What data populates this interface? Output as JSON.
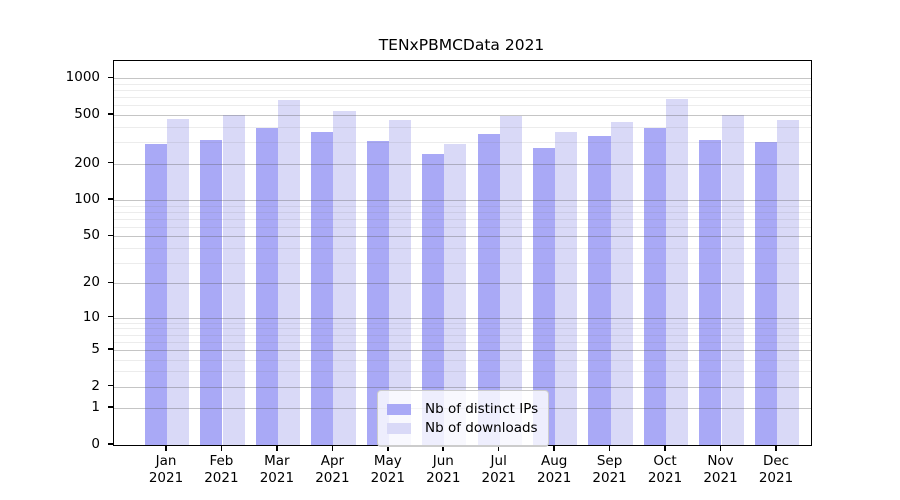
{
  "chart_data": {
    "type": "bar",
    "title": "TENxPBMCData 2021",
    "xlabel": "",
    "ylabel": "",
    "yscale": "log1p",
    "ylim": [
      0,
      1385
    ],
    "yticks": [
      0,
      1,
      2,
      5,
      10,
      20,
      50,
      100,
      200,
      500,
      1000
    ],
    "yticks_minor": [
      3,
      4,
      6,
      7,
      8,
      9,
      30,
      40,
      60,
      70,
      80,
      90,
      300,
      400,
      600,
      700,
      800,
      900
    ],
    "grid": "horizontal",
    "legend_position": "lower-center",
    "categories": [
      {
        "month": "Jan",
        "year": "2021"
      },
      {
        "month": "Feb",
        "year": "2021"
      },
      {
        "month": "Mar",
        "year": "2021"
      },
      {
        "month": "Apr",
        "year": "2021"
      },
      {
        "month": "May",
        "year": "2021"
      },
      {
        "month": "Jun",
        "year": "2021"
      },
      {
        "month": "Jul",
        "year": "2021"
      },
      {
        "month": "Aug",
        "year": "2021"
      },
      {
        "month": "Sep",
        "year": "2021"
      },
      {
        "month": "Oct",
        "year": "2021"
      },
      {
        "month": "Nov",
        "year": "2021"
      },
      {
        "month": "Dec",
        "year": "2021"
      }
    ],
    "series": [
      {
        "name": "Nb of distinct IPs",
        "color": "#a9a9f6",
        "values": [
          290,
          313,
          393,
          364,
          307,
          240,
          350,
          269,
          338,
          393,
          313,
          301
        ]
      },
      {
        "name": "Nb of downloads",
        "color": "#d9d9f7",
        "values": [
          466,
          502,
          667,
          542,
          457,
          290,
          493,
          364,
          440,
          680,
          502,
          457
        ]
      }
    ]
  }
}
